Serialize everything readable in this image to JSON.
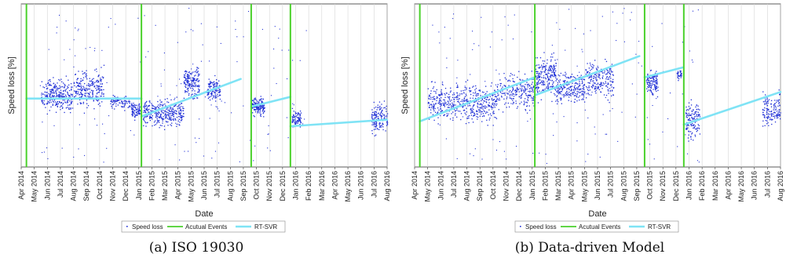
{
  "chart_data": [
    {
      "type": "scatter",
      "caption": "(a) ISO 19030",
      "xlabel": "Date",
      "ylabel": "Speed loss [%]",
      "categories": [
        "Apr 2014",
        "May 2014",
        "Jun 2014",
        "Jul 2014",
        "Aug 2014",
        "Sep 2014",
        "Oct 2014",
        "Nov 2014",
        "Dec 2014",
        "Jan 2015",
        "Feb 2015",
        "Mar 2015",
        "Apr 2015",
        "May 2015",
        "Jun 2015",
        "Jul 2015",
        "Aug 2015",
        "Sep 2015",
        "Oct 2015",
        "Nov 2015",
        "Dec 2015",
        "Jan 2016",
        "Feb 2016",
        "Mar 2016",
        "Apr 2016",
        "May 2016",
        "Jun 2016",
        "Jul 2016",
        "Aug 2016"
      ],
      "ylim": [
        0,
        100
      ],
      "grid": true,
      "legend": {
        "position": "bottom",
        "entries": [
          "Speed loss",
          "Acutual Events",
          "RT-SVR"
        ]
      },
      "events": [
        0.4,
        9.2,
        17.6,
        20.6
      ],
      "rtsvr_segments": [
        [
          [
            0.4,
            42
          ],
          [
            9.2,
            42
          ]
        ],
        [
          [
            9.2,
            31
          ],
          [
            16.8,
            54
          ]
        ],
        [
          [
            17.6,
            37
          ],
          [
            20.6,
            43
          ]
        ],
        [
          [
            20.6,
            25
          ],
          [
            28,
            29
          ]
        ]
      ],
      "clusters": [
        {
          "x": [
            1.5,
            3.9
          ],
          "y": [
            30,
            58
          ],
          "n": 260
        },
        {
          "x": [
            4.0,
            6.3
          ],
          "y": [
            32,
            65
          ],
          "n": 230
        },
        {
          "x": [
            6.8,
            8.3
          ],
          "y": [
            34,
            46
          ],
          "n": 90
        },
        {
          "x": [
            8.4,
            9.1
          ],
          "y": [
            28,
            42
          ],
          "n": 80
        },
        {
          "x": [
            9.3,
            12.4
          ],
          "y": [
            22,
            45
          ],
          "n": 340
        },
        {
          "x": [
            12.4,
            13.6
          ],
          "y": [
            38,
            65
          ],
          "n": 170
        },
        {
          "x": [
            14.2,
            15.2
          ],
          "y": [
            38,
            58
          ],
          "n": 120
        },
        {
          "x": [
            17.6,
            18.6
          ],
          "y": [
            30,
            45
          ],
          "n": 150
        },
        {
          "x": [
            20.7,
            21.4
          ],
          "y": [
            22,
            38
          ],
          "n": 80
        },
        {
          "x": [
            26.8,
            28
          ],
          "y": [
            18,
            42
          ],
          "n": 140
        }
      ],
      "scatter_extent": {
        "x": [
          1.2,
          21.8
        ],
        "y": [
          2,
          98
        ]
      }
    },
    {
      "type": "scatter",
      "caption": "(b) Data-driven Model",
      "xlabel": "Date",
      "ylabel": "Speed loss [%]",
      "categories": [
        "Apr 2014",
        "May 2014",
        "Jun 2014",
        "Jul 2014",
        "Aug 2014",
        "Sep 2014",
        "Oct 2014",
        "Nov 2014",
        "Dec 2014",
        "Jan 2015",
        "Feb 2015",
        "Mar 2015",
        "Apr 2015",
        "May 2015",
        "Jun 2015",
        "Jul 2015",
        "Aug 2015",
        "Sep 2015",
        "Oct 2015",
        "Nov 2015",
        "Dec 2015",
        "Jan 2016",
        "Feb 2016",
        "Mar 2016",
        "Apr 2016",
        "May 2016",
        "Jun 2016",
        "Jul 2016",
        "Aug 2016"
      ],
      "ylim": [
        0,
        100
      ],
      "grid": true,
      "legend": {
        "position": "bottom",
        "entries": [
          "Speed loss",
          "Acutual Events",
          "RT-SVR"
        ]
      },
      "events": [
        0.4,
        9.2,
        17.6,
        20.6
      ],
      "rtsvr_segments": [
        [
          [
            0.4,
            28
          ],
          [
            9.2,
            55
          ]
        ],
        [
          [
            9.2,
            44
          ],
          [
            17.2,
            68
          ]
        ],
        [
          [
            17.6,
            55
          ],
          [
            20.5,
            61
          ]
        ],
        [
          [
            20.6,
            26
          ],
          [
            28,
            46
          ]
        ]
      ],
      "clusters": [
        {
          "x": [
            1.0,
            3.5
          ],
          "y": [
            25,
            55
          ],
          "n": 220
        },
        {
          "x": [
            3.5,
            6.2
          ],
          "y": [
            22,
            55
          ],
          "n": 260
        },
        {
          "x": [
            6.2,
            9.2
          ],
          "y": [
            30,
            62
          ],
          "n": 230
        },
        {
          "x": [
            9.2,
            10.8
          ],
          "y": [
            38,
            75
          ],
          "n": 220
        },
        {
          "x": [
            10.8,
            13.0
          ],
          "y": [
            35,
            62
          ],
          "n": 230
        },
        {
          "x": [
            13.0,
            15.2
          ],
          "y": [
            38,
            70
          ],
          "n": 200
        },
        {
          "x": [
            17.7,
            18.6
          ],
          "y": [
            42,
            62
          ],
          "n": 120
        },
        {
          "x": [
            20.0,
            20.4
          ],
          "y": [
            52,
            62
          ],
          "n": 30
        },
        {
          "x": [
            20.7,
            21.8
          ],
          "y": [
            12,
            45
          ],
          "n": 130
        },
        {
          "x": [
            26.6,
            28
          ],
          "y": [
            22,
            50
          ],
          "n": 140
        }
      ],
      "scatter_extent": {
        "x": [
          1.0,
          21.8
        ],
        "y": [
          2,
          98
        ]
      }
    }
  ]
}
